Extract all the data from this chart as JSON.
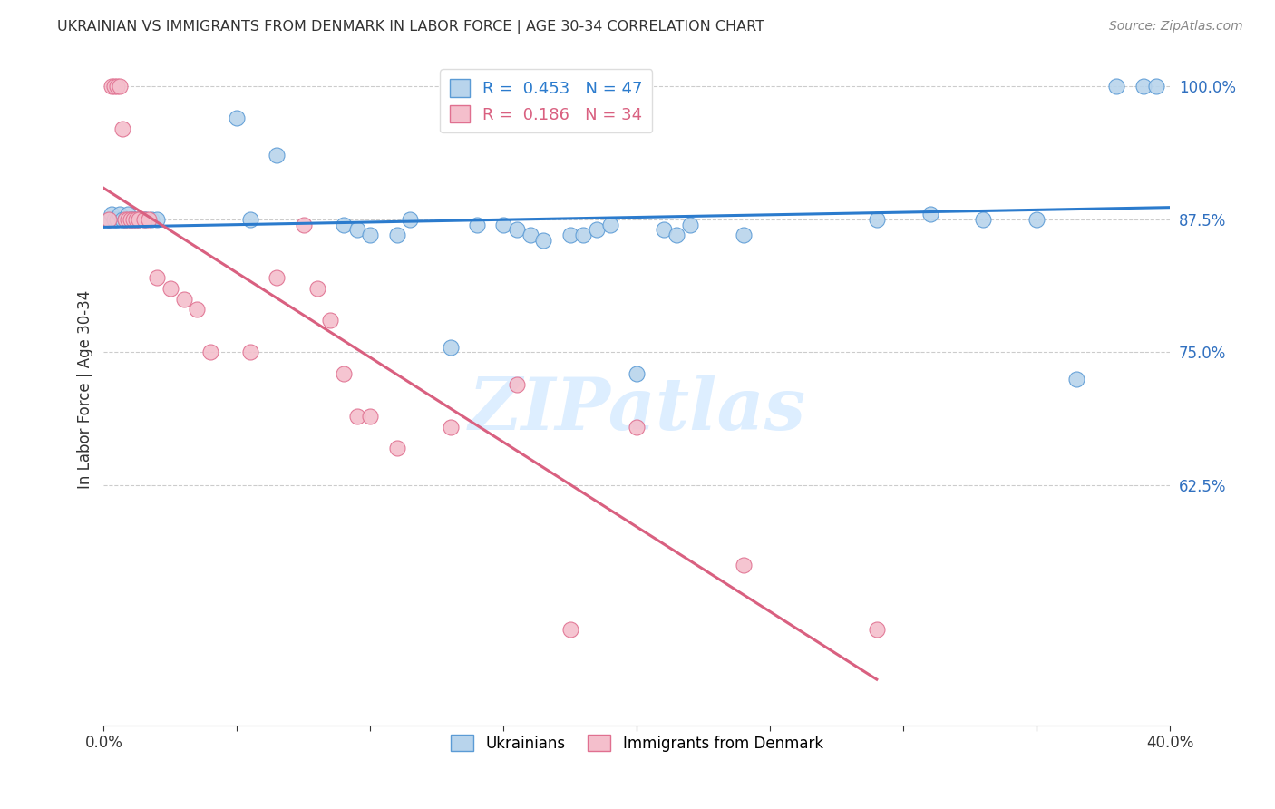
{
  "title": "UKRAINIAN VS IMMIGRANTS FROM DENMARK IN LABOR FORCE | AGE 30-34 CORRELATION CHART",
  "source": "Source: ZipAtlas.com",
  "ylabel": "In Labor Force | Age 30-34",
  "xlim": [
    0.0,
    0.4
  ],
  "ylim": [
    0.4,
    1.03
  ],
  "yticks": [
    0.625,
    0.75,
    0.875,
    1.0
  ],
  "ytick_labels": [
    "62.5%",
    "75.0%",
    "87.5%",
    "100.0%"
  ],
  "xticks": [
    0.0,
    0.05,
    0.1,
    0.15,
    0.2,
    0.25,
    0.3,
    0.35,
    0.4
  ],
  "xtick_labels": [
    "0.0%",
    "",
    "",
    "",
    "",
    "",
    "",
    "",
    "40.0%"
  ],
  "blue_R": 0.453,
  "blue_N": 47,
  "pink_R": 0.186,
  "pink_N": 34,
  "blue_color": "#b8d4ec",
  "pink_color": "#f4bfcc",
  "blue_edge_color": "#5b9bd5",
  "pink_edge_color": "#e07090",
  "blue_line_color": "#2b7bcd",
  "pink_line_color": "#d96080",
  "tick_color": "#3070c0",
  "watermark_text": "ZIPatlas",
  "watermark_color": "#ddeeff",
  "blue_scatter_x": [
    0.002,
    0.003,
    0.004,
    0.005,
    0.006,
    0.007,
    0.008,
    0.009,
    0.01,
    0.011,
    0.012,
    0.013,
    0.015,
    0.016,
    0.018,
    0.02,
    0.05,
    0.055,
    0.065,
    0.09,
    0.095,
    0.1,
    0.11,
    0.115,
    0.13,
    0.14,
    0.15,
    0.155,
    0.16,
    0.165,
    0.175,
    0.18,
    0.185,
    0.19,
    0.2,
    0.21,
    0.215,
    0.22,
    0.24,
    0.29,
    0.31,
    0.33,
    0.35,
    0.365,
    0.38,
    0.39,
    0.395
  ],
  "blue_scatter_y": [
    0.875,
    0.88,
    0.875,
    0.875,
    0.88,
    0.875,
    0.875,
    0.88,
    0.875,
    0.875,
    0.875,
    0.875,
    0.875,
    0.875,
    0.875,
    0.875,
    0.97,
    0.875,
    0.935,
    0.87,
    0.865,
    0.86,
    0.86,
    0.875,
    0.755,
    0.87,
    0.87,
    0.865,
    0.86,
    0.855,
    0.86,
    0.86,
    0.865,
    0.87,
    0.73,
    0.865,
    0.86,
    0.87,
    0.86,
    0.875,
    0.88,
    0.875,
    0.875,
    0.725,
    1.0,
    1.0,
    1.0
  ],
  "pink_scatter_x": [
    0.002,
    0.003,
    0.004,
    0.005,
    0.006,
    0.007,
    0.008,
    0.009,
    0.01,
    0.011,
    0.012,
    0.013,
    0.015,
    0.017,
    0.02,
    0.025,
    0.03,
    0.035,
    0.04,
    0.055,
    0.065,
    0.075,
    0.08,
    0.085,
    0.09,
    0.095,
    0.1,
    0.11,
    0.13,
    0.155,
    0.175,
    0.2,
    0.24,
    0.29
  ],
  "pink_scatter_y": [
    0.875,
    1.0,
    1.0,
    1.0,
    1.0,
    0.96,
    0.875,
    0.875,
    0.875,
    0.875,
    0.875,
    0.875,
    0.875,
    0.875,
    0.82,
    0.81,
    0.8,
    0.79,
    0.75,
    0.75,
    0.82,
    0.87,
    0.81,
    0.78,
    0.73,
    0.69,
    0.69,
    0.66,
    0.68,
    0.72,
    0.49,
    0.68,
    0.55,
    0.49
  ]
}
